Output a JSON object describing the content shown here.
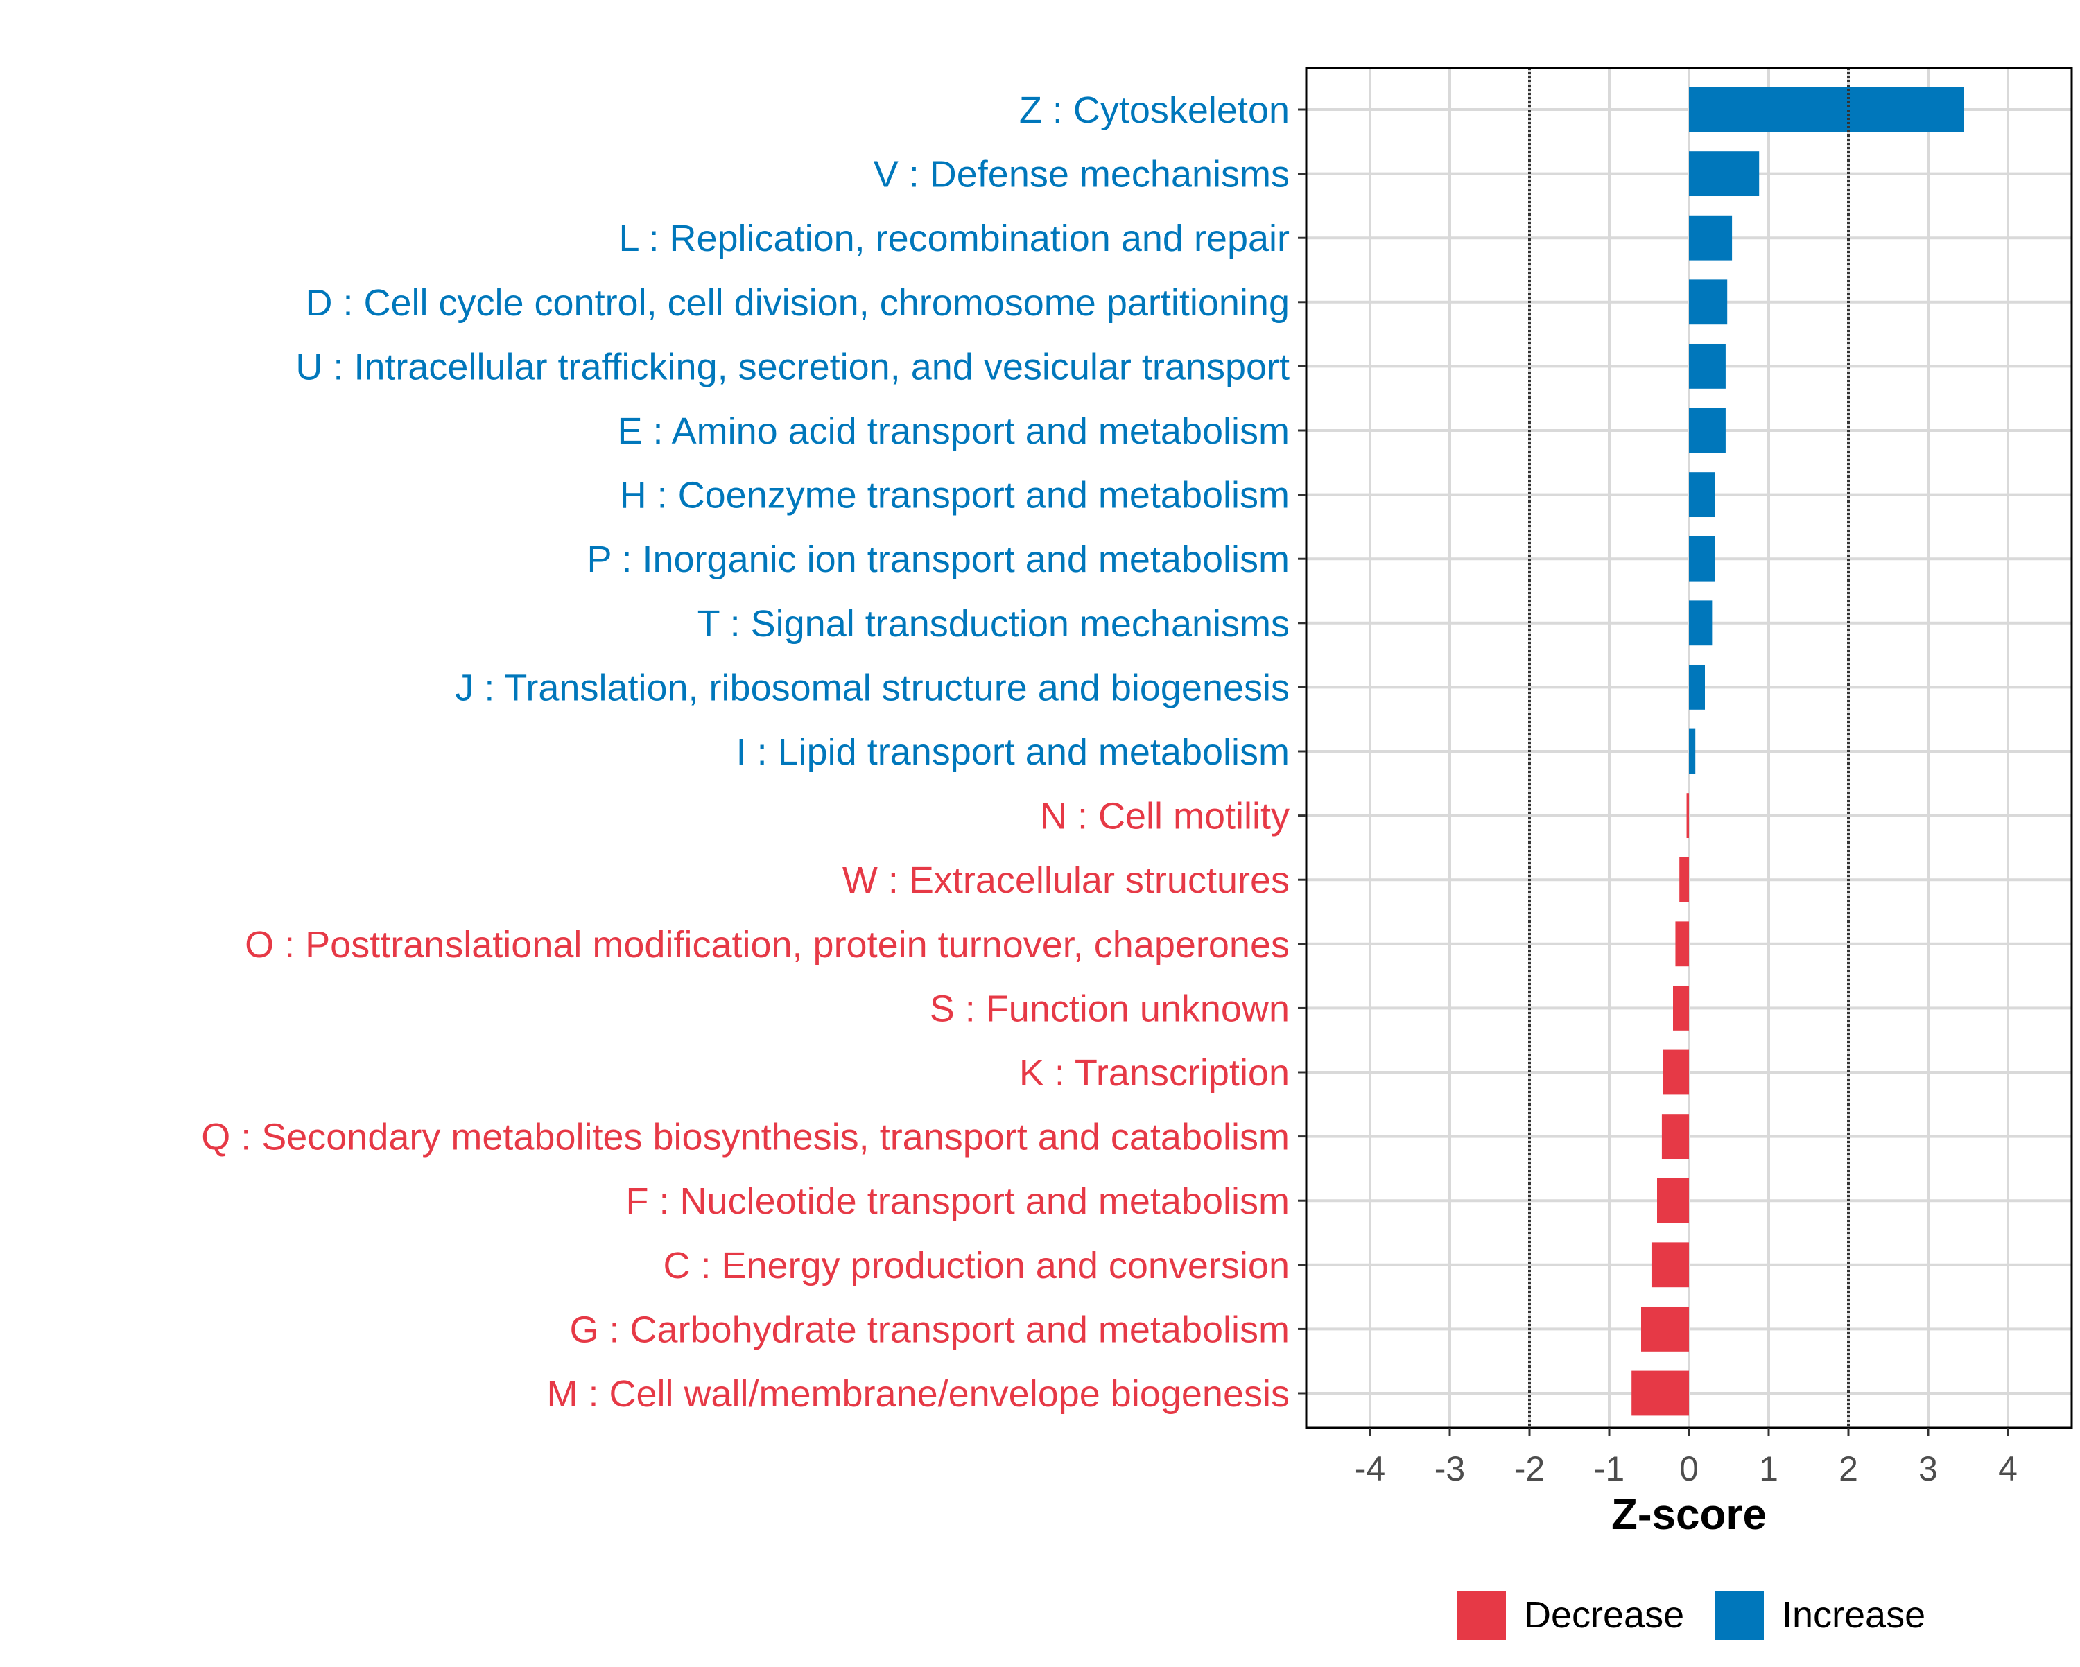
{
  "chart_data": {
    "type": "bar",
    "orientation": "horizontal",
    "xlabel": "Z-score",
    "ylabel": "",
    "xlim": [
      -4.8,
      4.8
    ],
    "xticks": [
      -4,
      -3,
      -2,
      -1,
      0,
      1,
      2,
      3,
      4
    ],
    "reference_lines": [
      -2,
      2
    ],
    "grid": true,
    "legend_position": "bottom",
    "legend": [
      {
        "label": "Decrease",
        "color": "#E63946"
      },
      {
        "label": "Increase",
        "color": "#0077BB"
      }
    ],
    "colors": {
      "Increase": "#0077BB",
      "Decrease": "#E63946"
    },
    "categories": [
      {
        "label": "Z : Cytoskeleton",
        "value": 3.45,
        "direction": "Increase"
      },
      {
        "label": "V : Defense mechanisms",
        "value": 0.88,
        "direction": "Increase"
      },
      {
        "label": "L : Replication, recombination and repair",
        "value": 0.54,
        "direction": "Increase"
      },
      {
        "label": "D : Cell cycle control, cell division, chromosome partitioning",
        "value": 0.48,
        "direction": "Increase"
      },
      {
        "label": "U : Intracellular trafficking, secretion, and vesicular transport",
        "value": 0.46,
        "direction": "Increase"
      },
      {
        "label": "E : Amino acid transport and metabolism",
        "value": 0.46,
        "direction": "Increase"
      },
      {
        "label": "H : Coenzyme transport and metabolism",
        "value": 0.33,
        "direction": "Increase"
      },
      {
        "label": "P : Inorganic ion transport and metabolism",
        "value": 0.33,
        "direction": "Increase"
      },
      {
        "label": "T : Signal transduction mechanisms",
        "value": 0.29,
        "direction": "Increase"
      },
      {
        "label": "J : Translation, ribosomal structure and biogenesis",
        "value": 0.2,
        "direction": "Increase"
      },
      {
        "label": "I : Lipid transport and metabolism",
        "value": 0.08,
        "direction": "Increase"
      },
      {
        "label": "N : Cell motility",
        "value": -0.03,
        "direction": "Decrease"
      },
      {
        "label": "W : Extracellular structures",
        "value": -0.12,
        "direction": "Decrease"
      },
      {
        "label": "O : Posttranslational modification, protein turnover, chaperones",
        "value": -0.17,
        "direction": "Decrease"
      },
      {
        "label": "S : Function unknown",
        "value": -0.2,
        "direction": "Decrease"
      },
      {
        "label": "K : Transcription",
        "value": -0.33,
        "direction": "Decrease"
      },
      {
        "label": "Q : Secondary metabolites biosynthesis, transport and catabolism",
        "value": -0.34,
        "direction": "Decrease"
      },
      {
        "label": "F : Nucleotide transport and metabolism",
        "value": -0.4,
        "direction": "Decrease"
      },
      {
        "label": "C : Energy production and conversion",
        "value": -0.47,
        "direction": "Decrease"
      },
      {
        "label": "G : Carbohydrate transport and metabolism",
        "value": -0.6,
        "direction": "Decrease"
      },
      {
        "label": "M : Cell wall/membrane/envelope biogenesis",
        "value": -0.72,
        "direction": "Decrease"
      }
    ]
  }
}
